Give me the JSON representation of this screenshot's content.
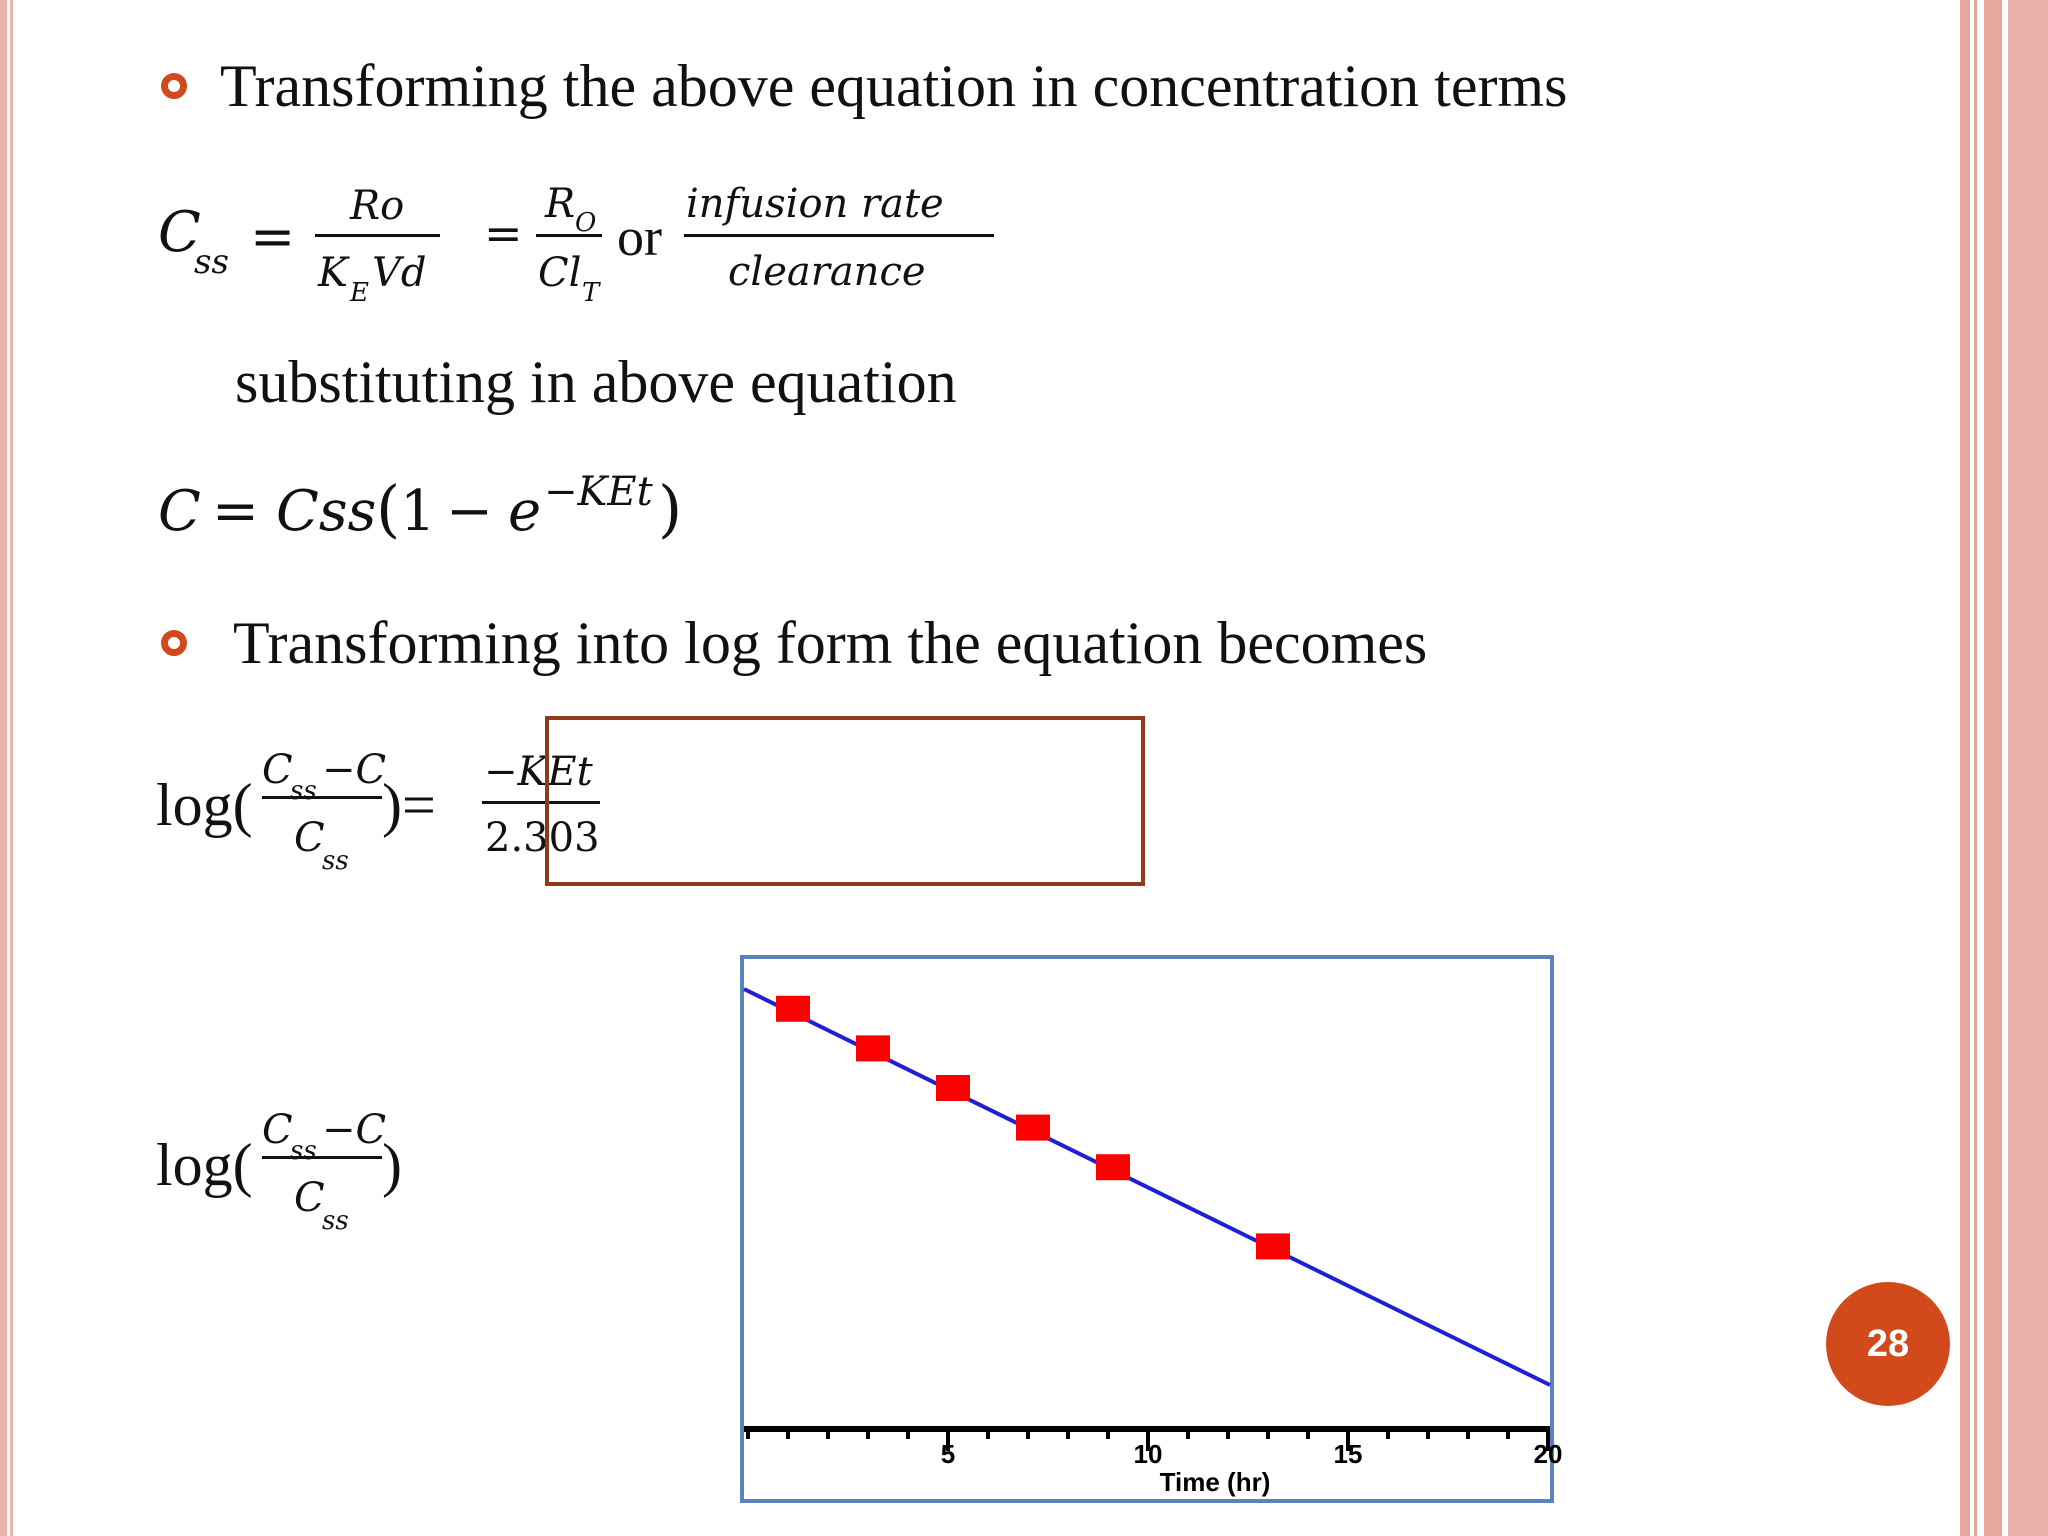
{
  "bullets": {
    "b1": "Transforming the above equation in concentration terms",
    "b2": "Transforming into log form the equation becomes"
  },
  "body": {
    "substituting": "substituting in above equation"
  },
  "eq1": {
    "lhs_C": "C",
    "lhs_sub": "ss",
    "eq1": "=",
    "f1_num": "Ro",
    "f1_den_K": "K",
    "f1_den_sub": "E",
    "f1_den_Vd": "Vd",
    "eq2": "=",
    "f2_num_R": "R",
    "f2_num_sub": "O",
    "f2_den_Cl": "Cl",
    "f2_den_sub": "T",
    "or": "or",
    "f3_num": "infusion rate",
    "f3_den": "clearance"
  },
  "eq2": {
    "lhs": "C",
    "eq": "=",
    "css": "Css",
    "paren_open": "(",
    "one": "1",
    "minus": "−",
    "e": "e",
    "exp": "−KEt",
    "paren_close": ")"
  },
  "eq3": {
    "log": "log(",
    "num_C": "C",
    "num_sub": "ss",
    "num_minus_C": "−C",
    "den_C": "C",
    "den_sub": "ss",
    "close_eq": ")=",
    "rhs_num": "−KEt",
    "rhs_den": "2.303"
  },
  "eq4": {
    "log": "log(",
    "num_C": "C",
    "num_sub": "ss",
    "num_minus_C": "−C",
    "den_C": "C",
    "den_sub": "ss",
    "close": ")"
  },
  "chart_data": {
    "type": "line",
    "xlabel": "Time (hr)",
    "ylabel": "",
    "xlim": [
      0,
      20
    ],
    "x_ticks": [
      5,
      10,
      15,
      20
    ],
    "series": [
      {
        "x": [
          0,
          20
        ],
        "y": [
          1.0,
          0.1
        ]
      }
    ],
    "markers": {
      "x": [
        1,
        3,
        5,
        7,
        9,
        13
      ],
      "y": [
        0.96,
        0.87,
        0.79,
        0.71,
        0.64,
        0.47
      ]
    },
    "line_color": "#1f1fd6",
    "marker_color": "#ff0000",
    "grid": false
  },
  "page_number": "28",
  "colors": {
    "accent": "#d24a1c",
    "box_border": "#8e3a1c",
    "chart_border": "#5a83bd"
  }
}
